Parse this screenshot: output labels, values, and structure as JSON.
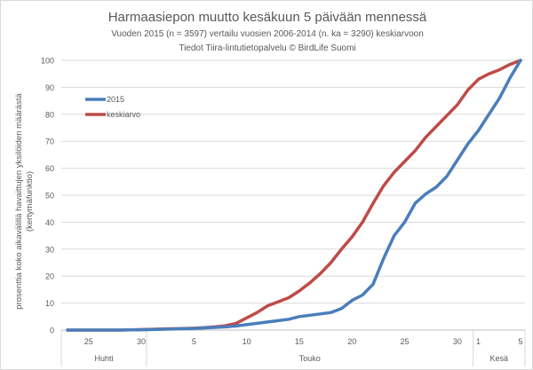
{
  "chart_data": {
    "type": "line",
    "title": "Harmaasiepon muutto kesäkuun 5 päivään mennessä",
    "subtitle": "Vuoden  2015 (n = 3597) vertailu vuosien 2006-2014 (n. ka = 3290) keskiarvoon",
    "source": "Tiedot Tiira-lintutietopalvelu © BirdLife Suomi",
    "ylabel": "prosenttia koko aikavälillä havaittujen yksilöiden määrästä (kertymäfunktio)",
    "xlabel": "",
    "ylim": [
      0,
      100
    ],
    "yticks": [
      0,
      10,
      20,
      30,
      40,
      50,
      60,
      70,
      80,
      90,
      100
    ],
    "grid": true,
    "legend_position": "top-left",
    "x_start": "23.4.",
    "x_end": "5.6.",
    "x_tick_labels": [
      {
        "day_index": 2,
        "label": "25"
      },
      {
        "day_index": 7,
        "label": "30"
      },
      {
        "day_index": 12,
        "label": "5"
      },
      {
        "day_index": 17,
        "label": "10"
      },
      {
        "day_index": 22,
        "label": "15"
      },
      {
        "day_index": 27,
        "label": "20"
      },
      {
        "day_index": 32,
        "label": "25"
      },
      {
        "day_index": 37,
        "label": "30"
      },
      {
        "day_index": 39,
        "label": "1"
      },
      {
        "day_index": 43,
        "label": "5"
      }
    ],
    "months": [
      {
        "label": "Huhti",
        "from": 0,
        "to": 7
      },
      {
        "label": "Touko",
        "from": 8,
        "to": 38
      },
      {
        "label": "Kesä",
        "from": 39,
        "to": 43
      }
    ],
    "series": [
      {
        "name": "2015",
        "color": "#4a7ebb",
        "values": [
          0,
          0,
          0,
          0,
          0,
          0,
          0.1,
          0.1,
          0.2,
          0.3,
          0.4,
          0.5,
          0.6,
          0.8,
          1,
          1.2,
          1.5,
          2,
          2.5,
          3,
          3.5,
          4,
          5,
          5.5,
          6,
          6.5,
          8,
          11,
          13,
          17,
          26.5,
          35,
          40,
          47,
          50.5,
          53,
          57,
          63,
          69,
          74,
          80,
          86,
          93.5,
          100
        ]
      },
      {
        "name": "keskiarvo",
        "color": "#be4b48",
        "values": [
          0,
          0,
          0,
          0,
          0,
          0,
          0.1,
          0.2,
          0.3,
          0.4,
          0.5,
          0.6,
          0.7,
          0.9,
          1.2,
          1.6,
          2.5,
          4.5,
          6.5,
          9,
          10.5,
          12,
          14.5,
          17.5,
          21,
          25,
          30,
          34.5,
          40,
          47,
          53.5,
          58.5,
          62.5,
          66.5,
          71.5,
          75.5,
          79.5,
          83.5,
          89,
          93,
          95,
          96.5,
          98.5,
          100
        ]
      }
    ]
  }
}
